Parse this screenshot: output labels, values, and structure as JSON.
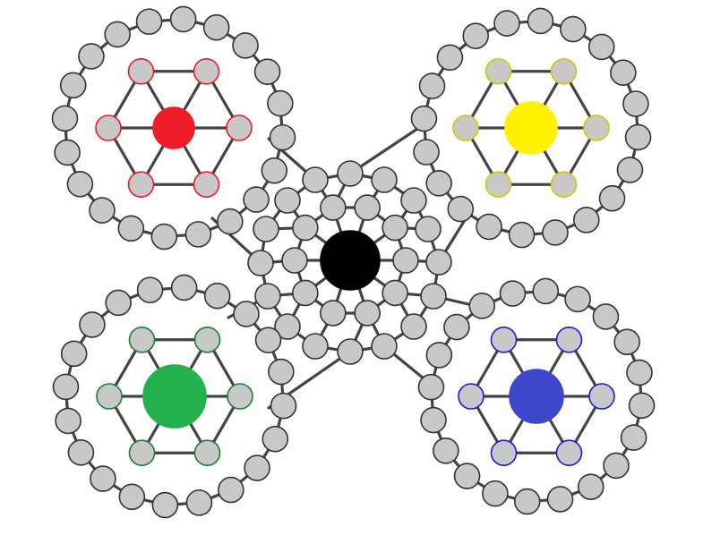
{
  "colors": {
    "edge": "#444444",
    "node_fill": "#c8c8c8",
    "node_stroke": "#333333",
    "center_hub": "#000000",
    "red_hub": "#ee1c27",
    "yellow_hub": "#fff200",
    "green_hub": "#22b14c",
    "blue_hub": "#3f48cc"
  },
  "clusters": [
    {
      "id": "red",
      "hub_color": "#ee1c27",
      "ring_stroke": "#ee1c27"
    },
    {
      "id": "yellow",
      "hub_color": "#fff200",
      "ring_stroke": "#d4c800"
    },
    {
      "id": "green",
      "hub_color": "#22b14c",
      "ring_stroke": "#1a7f2e"
    },
    {
      "id": "blue",
      "hub_color": "#3f48cc",
      "ring_stroke": "#1a1adc"
    }
  ],
  "center": {
    "hub_color": "#000000"
  }
}
